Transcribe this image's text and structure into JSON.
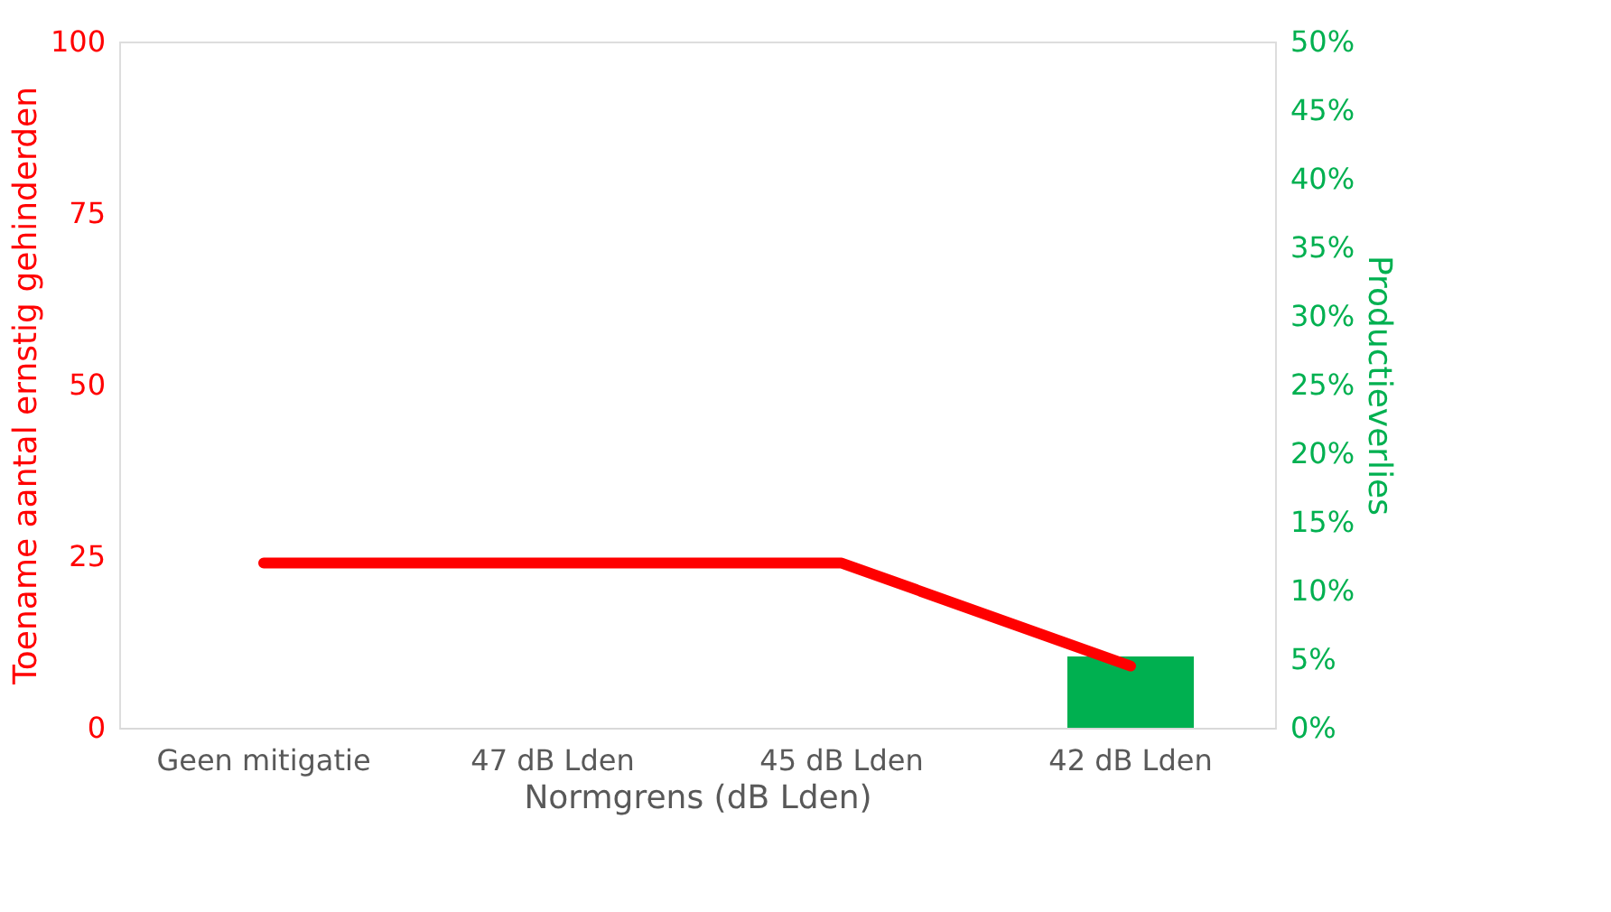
{
  "chart_data": {
    "type": "line",
    "categories": [
      "Geen mitigatie",
      "47 dB Lden",
      "45 dB Lden",
      "42 dB Lden"
    ],
    "xlabel": "Normgrens (dB Lden)",
    "ylabel": "Toename aantal ernstig gehinderden",
    "y2label": "Productieverlies",
    "series": [
      {
        "type": "bar",
        "axis": "y2",
        "color": "#00b050",
        "values": [
          null,
          null,
          null,
          5.2
        ]
      },
      {
        "color": "#ff0000",
        "values": [
          24,
          24,
          24,
          9
        ]
      }
    ],
    "ylim": [
      0,
      100
    ],
    "yticks": [
      0,
      25,
      50,
      75,
      100
    ],
    "y2lim": [
      0,
      50
    ],
    "y2ticks": [
      {
        "value": 0,
        "label": "0%"
      },
      {
        "value": 5,
        "label": "5%"
      },
      {
        "value": 10,
        "label": "10%"
      },
      {
        "value": 15,
        "label": "15%"
      },
      {
        "value": 20,
        "label": "20%"
      },
      {
        "value": 25,
        "label": "25%"
      },
      {
        "value": 30,
        "label": "30%"
      },
      {
        "value": 35,
        "label": "35%"
      },
      {
        "value": 40,
        "label": "40%"
      },
      {
        "value": 45,
        "label": "45%"
      },
      {
        "value": 50,
        "label": "50%"
      }
    ],
    "grid": false
  }
}
